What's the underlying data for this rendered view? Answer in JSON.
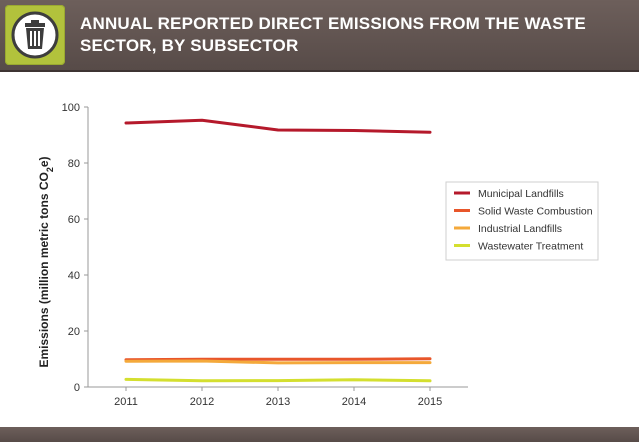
{
  "header": {
    "title": "ANNUAL REPORTED DIRECT EMISSIONS FROM THE WASTE SECTOR, BY SUBSECTOR",
    "icon": "trash-can-icon",
    "bg_color": "#5f524f",
    "icon_bg_color": "#b2c23c"
  },
  "chart_data": {
    "type": "line",
    "title": "ANNUAL REPORTED DIRECT EMISSIONS FROM THE WASTE SECTOR, BY SUBSECTOR",
    "xlabel": "",
    "ylabel_prefix": "Emissions (million metric tons CO",
    "ylabel_sub": "2",
    "ylabel_suffix": "e)",
    "x": [
      2011,
      2012,
      2013,
      2014,
      2015
    ],
    "ylim": [
      0,
      100
    ],
    "yticks": [
      0,
      20,
      40,
      60,
      80,
      100
    ],
    "grid": false,
    "legend_position": "right",
    "series": [
      {
        "name": "Municipal Landfills",
        "color": "#b5192b",
        "values": [
          94.3,
          95.3,
          91.8,
          91.6,
          91.0
        ]
      },
      {
        "name": "Solid Waste Combustion",
        "color": "#e8562a",
        "values": [
          9.7,
          9.9,
          9.9,
          9.9,
          10.1
        ]
      },
      {
        "name": "Industrial Landfills",
        "color": "#f4a93b",
        "values": [
          9.2,
          9.3,
          8.6,
          8.7,
          8.7
        ]
      },
      {
        "name": "Wastewater Treatment",
        "color": "#d4df2f",
        "values": [
          2.7,
          2.2,
          2.3,
          2.6,
          2.2
        ]
      }
    ]
  }
}
